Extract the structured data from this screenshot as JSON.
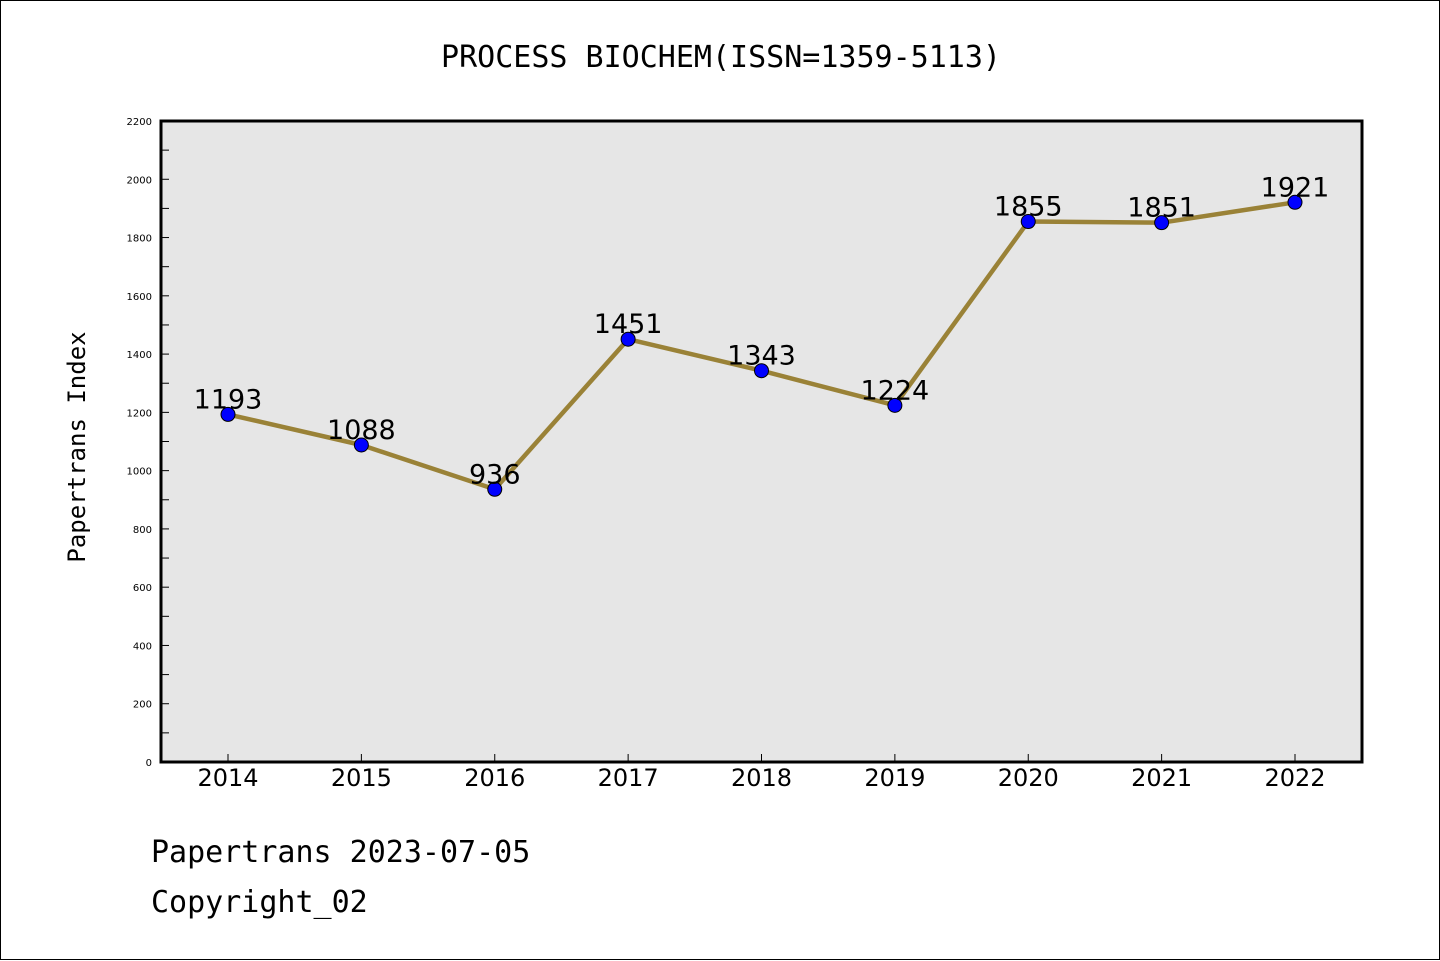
{
  "chart_data": {
    "type": "line",
    "title": "PROCESS BIOCHEM(ISSN=1359-5113)",
    "xlabel": "",
    "ylabel": "Papertrans Index",
    "categories": [
      "2014",
      "2015",
      "2016",
      "2017",
      "2018",
      "2019",
      "2020",
      "2021",
      "2022"
    ],
    "series": [
      {
        "values": [
          1193,
          1088,
          936,
          1451,
          1343,
          1224,
          1855,
          1851,
          1921
        ]
      }
    ],
    "data_labels": [
      "1193",
      "1088",
      "936",
      "1451",
      "1343",
      "1224",
      "1855",
      "1851",
      "1921"
    ],
    "ylim": [
      0,
      2200
    ],
    "yticks": [
      "0",
      "200",
      "400",
      "600",
      "800",
      "1000",
      "1200",
      "1400",
      "1600",
      "1800",
      "2000",
      "2200"
    ],
    "grid": false,
    "colors": {
      "line": "#9a8237",
      "marker": "#0000ff",
      "plot_bg": "#e6e6e6"
    }
  },
  "footer": {
    "line1": "Papertrans 2023-07-05",
    "line2": "Copyright_02"
  }
}
